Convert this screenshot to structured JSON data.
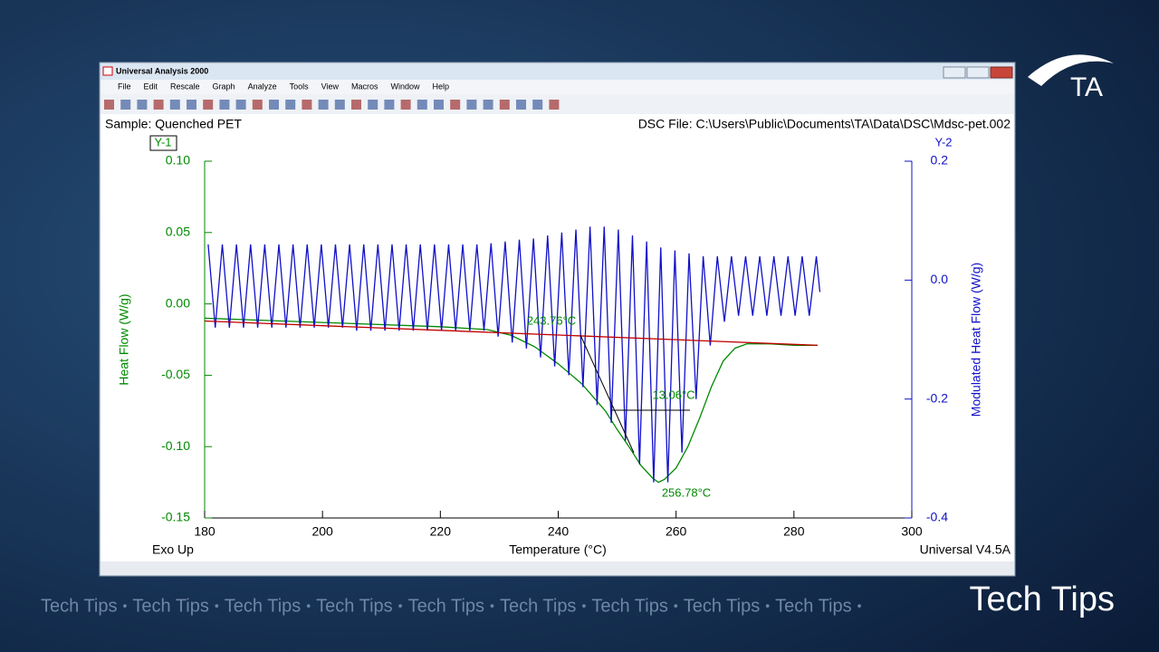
{
  "window": {
    "title": "Universal Analysis 2000",
    "menu": [
      "File",
      "Edit",
      "Rescale",
      "Graph",
      "Analyze",
      "Tools",
      "View",
      "Macros",
      "Window",
      "Help"
    ]
  },
  "header": {
    "sample": "Sample: Quenched PET",
    "file": "DSC File: C:\\Users\\Public\\Documents\\TA\\Data\\DSC\\Mdsc-pet.002"
  },
  "chart_data": {
    "type": "line",
    "y_axis_tag": "Y-1",
    "y2_axis_tag": "Y-2",
    "xlabel": "Temperature (°C)",
    "ylabel": "Heat Flow (W/g)",
    "y2label": "Modulated Heat Flow (W/g)",
    "xlim": [
      180,
      300
    ],
    "xticks": [
      180,
      200,
      220,
      240,
      260,
      280,
      300
    ],
    "ylim": [
      -0.15,
      0.1
    ],
    "yticks": [
      {
        "value": 0.1,
        "label": "0.10"
      },
      0.05,
      {
        "value": 0,
        "label": "0.00"
      },
      -0.05,
      {
        "value": -0.1,
        "label": "-0.10"
      },
      -0.15
    ],
    "y2lim": [
      -0.4,
      0.2
    ],
    "y2ticks": [
      0.2,
      {
        "value": 0,
        "label": "0.0"
      },
      -0.2,
      -0.4
    ],
    "series": [
      {
        "color": "#008a00",
        "x": [
          180,
          200,
          220,
          228,
          232,
          236,
          240,
          244,
          248,
          250,
          252,
          254,
          256,
          257,
          258,
          260,
          262,
          264,
          266,
          268,
          270,
          272,
          276,
          280,
          284
        ],
        "values": [
          -0.01,
          -0.013,
          -0.016,
          -0.018,
          -0.022,
          -0.03,
          -0.042,
          -0.056,
          -0.075,
          -0.088,
          -0.1,
          -0.113,
          -0.122,
          -0.125,
          -0.123,
          -0.115,
          -0.1,
          -0.08,
          -0.058,
          -0.04,
          -0.031,
          -0.028,
          -0.028,
          -0.029,
          -0.029
        ]
      },
      {
        "color": "#1010c8",
        "axis": "y2",
        "x": [
          180.6,
          181.8,
          183.0,
          184.2,
          185.4,
          186.6,
          187.8,
          189.0,
          190.2,
          191.4,
          192.6,
          193.8,
          195.0,
          196.2,
          197.4,
          198.6,
          199.8,
          201.0,
          202.2,
          203.4,
          204.6,
          205.8,
          207.0,
          208.2,
          209.4,
          210.6,
          211.8,
          213.0,
          214.2,
          215.4,
          216.6,
          217.8,
          219.0,
          220.2,
          221.4,
          222.6,
          223.8,
          225.0,
          226.2,
          227.4,
          228.6,
          229.8,
          231.0,
          232.2,
          233.4,
          234.6,
          235.8,
          237.0,
          238.2,
          239.4,
          240.6,
          241.8,
          243.0,
          244.2,
          245.4,
          246.6,
          247.8,
          249.0,
          250.2,
          251.4,
          252.6,
          253.8,
          255.0,
          256.2,
          257.4,
          258.6,
          259.8,
          261.0,
          262.2,
          263.4,
          264.6,
          265.8,
          267.0,
          268.2,
          269.4,
          270.6,
          271.8,
          273.0,
          274.2,
          275.4,
          276.6,
          277.8,
          279.0,
          280.2,
          281.4,
          282.6,
          283.8,
          284.4
        ],
        "values": [
          0.06,
          -0.08,
          0.06,
          -0.08,
          0.06,
          -0.08,
          0.06,
          -0.08,
          0.06,
          -0.08,
          0.06,
          -0.08,
          0.06,
          -0.08,
          0.06,
          -0.08,
          0.06,
          -0.08,
          0.06,
          -0.08,
          0.06,
          -0.085,
          0.06,
          -0.085,
          0.06,
          -0.085,
          0.06,
          -0.085,
          0.06,
          -0.085,
          0.06,
          -0.085,
          0.06,
          -0.085,
          0.06,
          -0.085,
          0.06,
          -0.085,
          0.06,
          -0.085,
          0.062,
          -0.095,
          0.065,
          -0.105,
          0.068,
          -0.115,
          0.07,
          -0.13,
          0.075,
          -0.145,
          0.08,
          -0.16,
          0.085,
          -0.18,
          0.09,
          -0.21,
          0.09,
          -0.24,
          0.085,
          -0.27,
          0.075,
          -0.31,
          0.065,
          -0.34,
          0.055,
          -0.34,
          0.05,
          -0.29,
          0.045,
          -0.2,
          0.04,
          -0.11,
          0.04,
          -0.07,
          0.04,
          -0.06,
          0.04,
          -0.06,
          0.04,
          -0.06,
          0.04,
          -0.06,
          0.04,
          -0.06,
          0.04,
          -0.06,
          0.04,
          -0.02
        ]
      },
      {
        "color": "#c00000",
        "x": [
          180,
          284
        ],
        "values": [
          -0.012,
          -0.029
        ]
      }
    ],
    "annotations": [
      "243.76°C",
      "13.06°C",
      "256.78°C"
    ]
  },
  "footer": {
    "left": "Exo Up",
    "right": "Universal V4.5A"
  },
  "branding": {
    "logo": "TA",
    "strip": [
      "Tech Tips",
      "Tech Tips",
      "Tech Tips",
      "Tech Tips",
      "Tech Tips",
      "Tech Tips",
      "Tech Tips",
      "Tech Tips",
      "Tech Tips"
    ],
    "separator": "•",
    "big": "Tech Tips"
  }
}
